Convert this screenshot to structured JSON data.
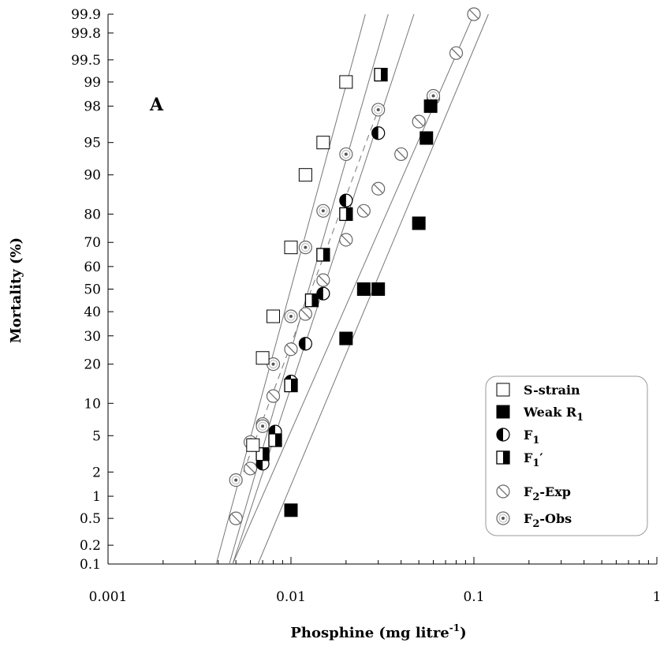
{
  "chart_data": {
    "type": "scatter",
    "panel_label": "A",
    "xlabel": "Phosphine (mg litre",
    "xlabel_sup": "-1",
    "xlabel_end": ")",
    "ylabel": "Mortality (%)",
    "x_scale": "log",
    "y_scale": "probit",
    "xlim": [
      0.001,
      1
    ],
    "ylim": [
      0.1,
      99.9
    ],
    "x_ticks": [
      {
        "value": 0.001,
        "label": "0.001"
      },
      {
        "value": 0.01,
        "label": "0.01"
      },
      {
        "value": 0.1,
        "label": "0.1"
      },
      {
        "value": 1,
        "label": "1"
      }
    ],
    "y_ticks": [
      {
        "value": 0.1,
        "label": "0.1"
      },
      {
        "value": 0.2,
        "label": "0.2"
      },
      {
        "value": 0.5,
        "label": "0.5"
      },
      {
        "value": 1,
        "label": "1"
      },
      {
        "value": 2,
        "label": "2"
      },
      {
        "value": 5,
        "label": "5"
      },
      {
        "value": 10,
        "label": "10"
      },
      {
        "value": 20,
        "label": "20"
      },
      {
        "value": 30,
        "label": "30"
      },
      {
        "value": 40,
        "label": "40"
      },
      {
        "value": 50,
        "label": "50"
      },
      {
        "value": 60,
        "label": "60"
      },
      {
        "value": 70,
        "label": "70"
      },
      {
        "value": 80,
        "label": "80"
      },
      {
        "value": 90,
        "label": "90"
      },
      {
        "value": 95,
        "label": "95"
      },
      {
        "value": 98,
        "label": "98"
      },
      {
        "value": 99,
        "label": "99"
      },
      {
        "value": 99.5,
        "label": "99.5"
      },
      {
        "value": 99.8,
        "label": "99.8"
      },
      {
        "value": 99.9,
        "label": "99.9"
      }
    ],
    "legend_position": "bottom-right",
    "series": [
      {
        "name": "S-strain",
        "legend_base": "S-strain",
        "legend_sub": "",
        "legend_suffix": "",
        "marker": "square-open",
        "points": [
          {
            "x": 0.0062,
            "y": 4
          },
          {
            "x": 0.007,
            "y": 22
          },
          {
            "x": 0.008,
            "y": 38
          },
          {
            "x": 0.01,
            "y": 68
          },
          {
            "x": 0.012,
            "y": 90
          },
          {
            "x": 0.015,
            "y": 95
          },
          {
            "x": 0.02,
            "y": 99
          }
        ],
        "fit": [
          {
            "x": 0.0039,
            "y": 0.1
          },
          {
            "x": 0.0255,
            "y": 99.9
          }
        ]
      },
      {
        "name": "Weak R1",
        "legend_base": "Weak R",
        "legend_sub": "1",
        "legend_suffix": "",
        "marker": "square-filled",
        "points": [
          {
            "x": 0.01,
            "y": 0.65
          },
          {
            "x": 0.02,
            "y": 29
          },
          {
            "x": 0.025,
            "y": 50
          },
          {
            "x": 0.03,
            "y": 50
          },
          {
            "x": 0.05,
            "y": 77
          },
          {
            "x": 0.055,
            "y": 95.5
          },
          {
            "x": 0.058,
            "y": 98
          }
        ],
        "fit": [
          {
            "x": 0.0066,
            "y": 0.1
          },
          {
            "x": 0.12,
            "y": 99.9
          }
        ]
      },
      {
        "name": "F1",
        "legend_base": "F",
        "legend_sub": "1",
        "legend_suffix": "",
        "marker": "circle-half",
        "points": [
          {
            "x": 0.007,
            "y": 2.5
          },
          {
            "x": 0.0082,
            "y": 5.5
          },
          {
            "x": 0.01,
            "y": 15
          },
          {
            "x": 0.012,
            "y": 27
          },
          {
            "x": 0.015,
            "y": 48
          },
          {
            "x": 0.02,
            "y": 84
          },
          {
            "x": 0.03,
            "y": 96
          }
        ],
        "fit": [
          {
            "x": 0.0048,
            "y": 0.1
          },
          {
            "x": 0.047,
            "y": 99.9
          }
        ]
      },
      {
        "name": "F1′",
        "legend_base": "F",
        "legend_sub": "1",
        "legend_suffix": "′",
        "marker": "square-half",
        "points": [
          {
            "x": 0.007,
            "y": 3.2
          },
          {
            "x": 0.0082,
            "y": 4.5
          },
          {
            "x": 0.01,
            "y": 14
          },
          {
            "x": 0.013,
            "y": 45
          },
          {
            "x": 0.015,
            "y": 65
          },
          {
            "x": 0.02,
            "y": 80
          },
          {
            "x": 0.031,
            "y": 99.2
          }
        ],
        "fit": [
          {
            "x": 0.0046,
            "y": 0.1
          },
          {
            "x": 0.034,
            "y": 99.9
          }
        ]
      },
      {
        "name": "F2-Exp",
        "legend_base": "F",
        "legend_sub": "2",
        "legend_suffix": "-Exp",
        "marker": "circle-slash",
        "points": [
          {
            "x": 0.005,
            "y": 0.5
          },
          {
            "x": 0.006,
            "y": 2.2
          },
          {
            "x": 0.007,
            "y": 6.5
          },
          {
            "x": 0.008,
            "y": 11.5
          },
          {
            "x": 0.01,
            "y": 25
          },
          {
            "x": 0.012,
            "y": 39
          },
          {
            "x": 0.015,
            "y": 54
          },
          {
            "x": 0.02,
            "y": 71
          },
          {
            "x": 0.025,
            "y": 81
          },
          {
            "x": 0.03,
            "y": 87
          },
          {
            "x": 0.04,
            "y": 93.5
          },
          {
            "x": 0.05,
            "y": 97
          },
          {
            "x": 0.06,
            "y": 98.4
          },
          {
            "x": 0.08,
            "y": 99.6
          },
          {
            "x": 0.1,
            "y": 99.9
          }
        ],
        "fit": [
          {
            "x": 0.0048,
            "y": 0.1
          },
          {
            "x": 0.1,
            "y": 99.9
          }
        ]
      },
      {
        "name": "F2-Obs",
        "legend_base": "F",
        "legend_sub": "2",
        "legend_suffix": "-Obs",
        "marker": "circle-dot",
        "points": [
          {
            "x": 0.005,
            "y": 1.6
          },
          {
            "x": 0.006,
            "y": 4.3
          },
          {
            "x": 0.007,
            "y": 6.2
          },
          {
            "x": 0.008,
            "y": 20
          },
          {
            "x": 0.01,
            "y": 38
          },
          {
            "x": 0.012,
            "y": 68
          },
          {
            "x": 0.015,
            "y": 81
          },
          {
            "x": 0.02,
            "y": 93.5
          },
          {
            "x": 0.03,
            "y": 97.8
          },
          {
            "x": 0.06,
            "y": 98.5
          }
        ],
        "fit": [
          {
            "x": 0.0055,
            "y": 2
          },
          {
            "x": 0.03,
            "y": 97.8
          }
        ],
        "fit_style": "dashed"
      }
    ]
  }
}
